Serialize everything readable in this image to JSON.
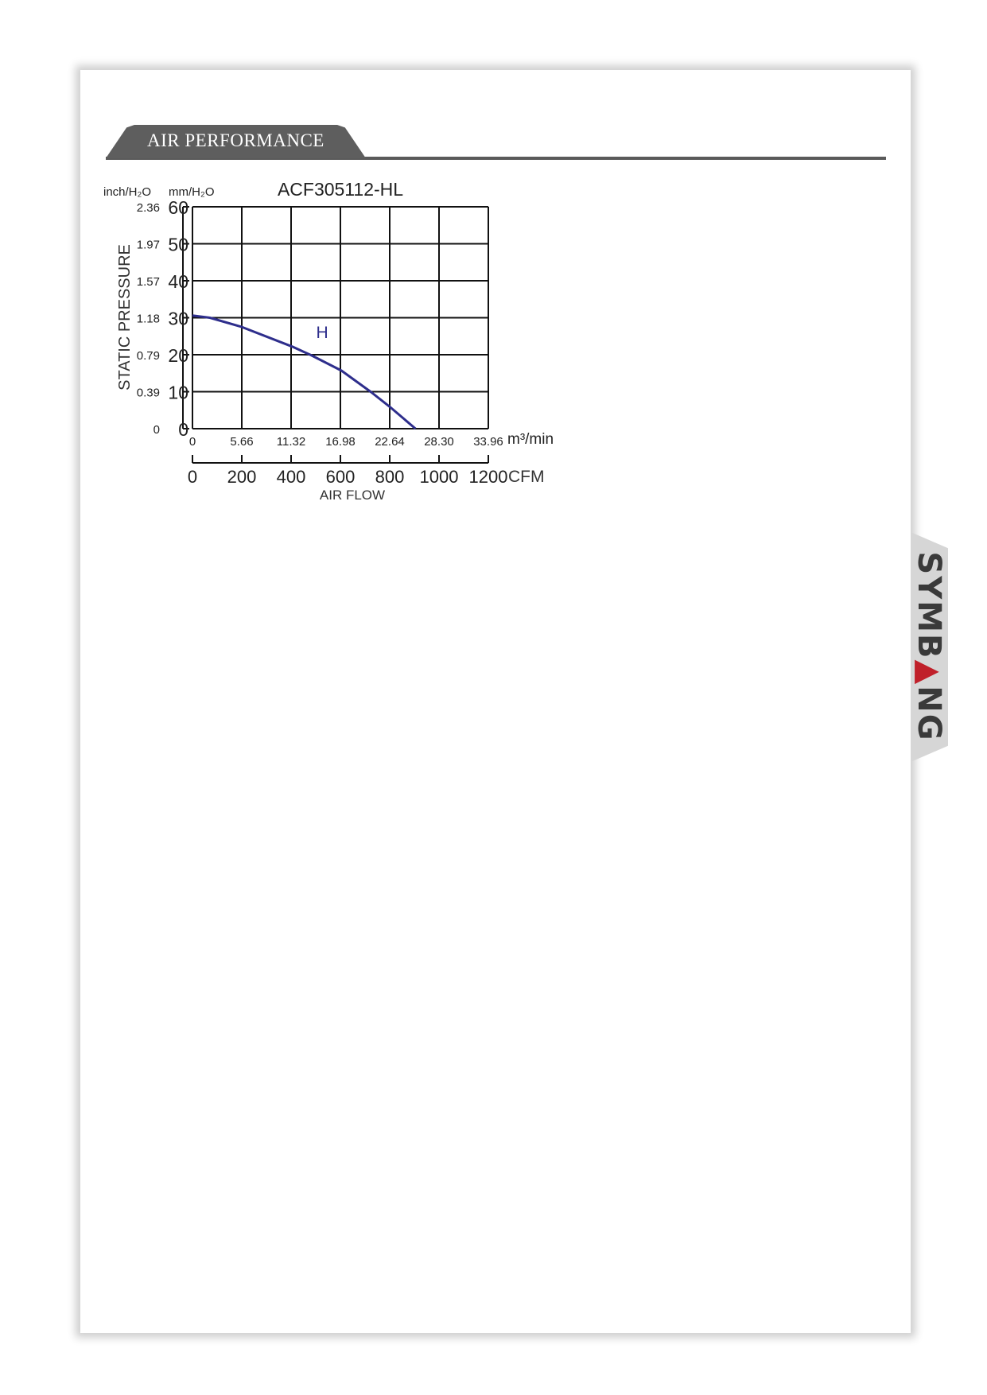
{
  "section": {
    "title": "AIR PERFORMANCE"
  },
  "brand": {
    "logo_text": "SYMBANG",
    "accent": "#c0202a"
  },
  "chart_data": {
    "type": "line",
    "title": "ACF305112-HL",
    "xlabel": "AIR FLOW",
    "ylabel": "STATIC PRESSURE",
    "y_unit_left": "inch/H₂O",
    "y_unit_right": "mm/H₂O",
    "x_unit_primary": "m³/min",
    "x_unit_secondary": "CFM",
    "xlim": [
      0,
      33.96
    ],
    "ylim": [
      0,
      60
    ],
    "grid": true,
    "x_ticks_m3min": [
      "0",
      "5.66",
      "11.32",
      "16.98",
      "22.64",
      "28.30",
      "33.96"
    ],
    "x_ticks_cfm": [
      "0",
      "200",
      "400",
      "600",
      "800",
      "1000",
      "1200"
    ],
    "y_ticks_mm": [
      "0",
      "10",
      "20",
      "30",
      "40",
      "50",
      "60"
    ],
    "y_ticks_inch": [
      "0",
      "0.39",
      "0.79",
      "1.18",
      "1.57",
      "1.97",
      "2.36"
    ],
    "series": [
      {
        "name": "H",
        "color": "#2e2e8c",
        "x": [
          0,
          2.0,
          5.66,
          11.45,
          13.6,
          17.1,
          20.5,
          22.7,
          25.6
        ],
        "y": [
          30.6,
          30,
          27.5,
          22.2,
          19.9,
          15.7,
          9.9,
          5.8,
          0
        ]
      }
    ]
  }
}
